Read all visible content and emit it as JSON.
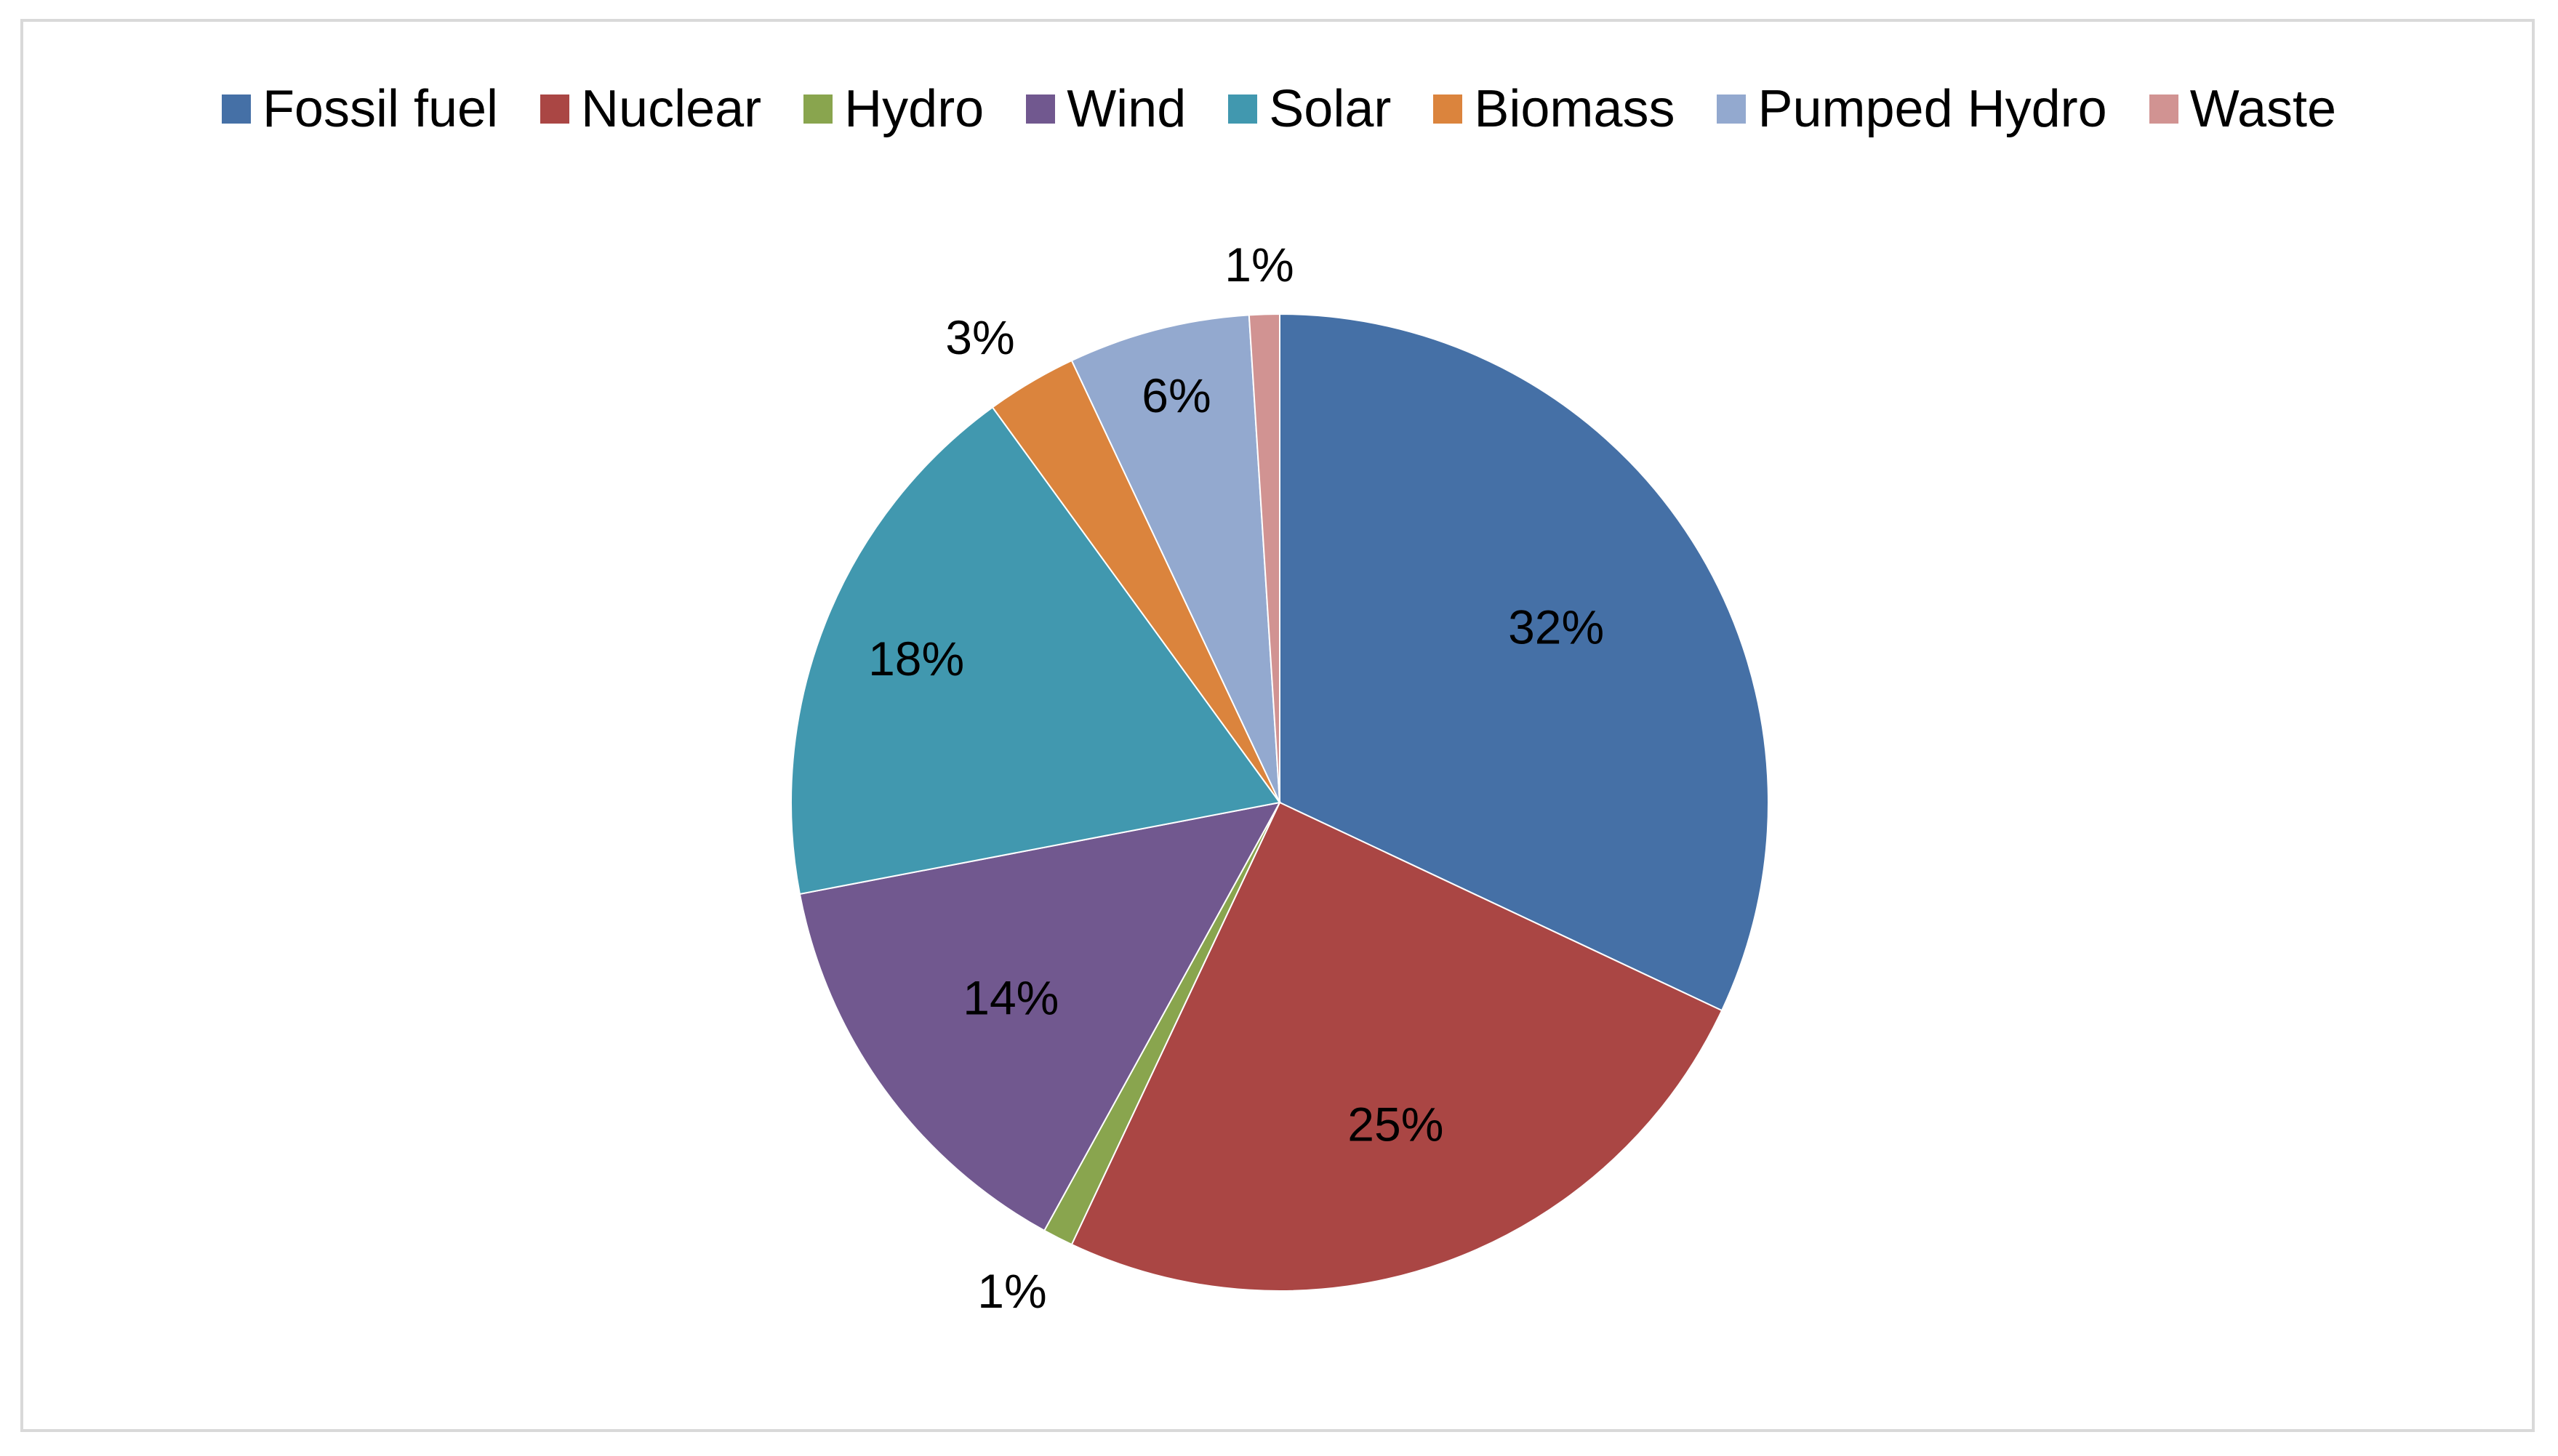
{
  "chart_data": {
    "type": "pie",
    "title": "",
    "legend_position": "top",
    "start_angle": "12 o'clock, clockwise",
    "slices": [
      {
        "label": "Fossil fuel",
        "value": 32,
        "display": "32%",
        "color": "#4570a6"
      },
      {
        "label": "Nuclear",
        "value": 25,
        "display": "25%",
        "color": "#aa4644"
      },
      {
        "label": "Hydro",
        "value": 1,
        "display": "1%",
        "color": "#89a54e"
      },
      {
        "label": "Wind",
        "value": 14,
        "display": "14%",
        "color": "#71588f"
      },
      {
        "label": "Solar",
        "value": 18,
        "display": "18%",
        "color": "#4198af"
      },
      {
        "label": "Biomass",
        "value": 3,
        "display": "3%",
        "color": "#db843d"
      },
      {
        "label": "Pumped Hydro",
        "value": 6,
        "display": "6%",
        "color": "#93a9cf"
      },
      {
        "label": "Waste",
        "value": 1,
        "display": "1%",
        "color": "#d19392"
      }
    ]
  }
}
